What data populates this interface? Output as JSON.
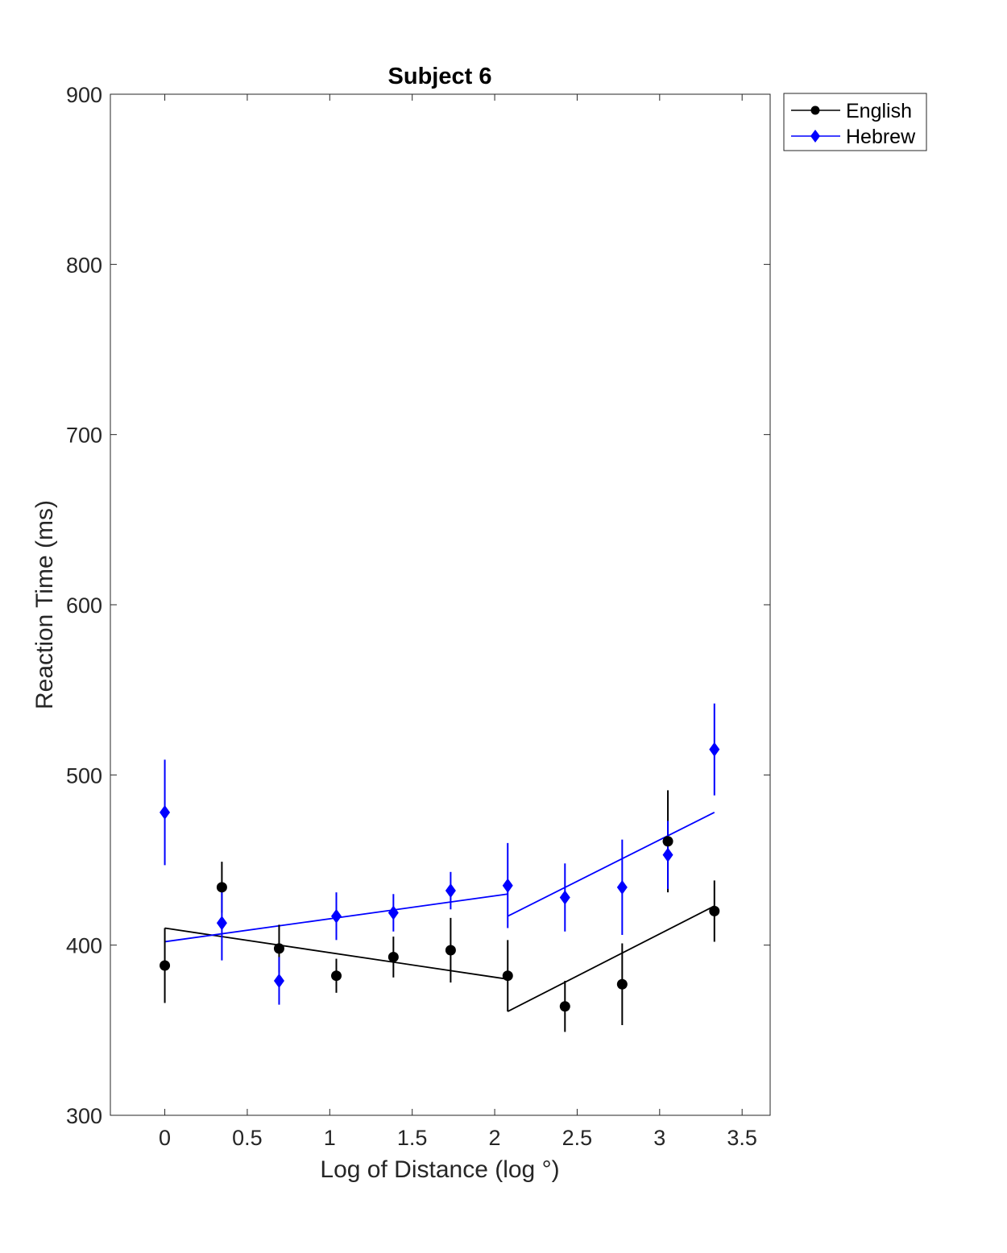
{
  "chart_data": {
    "type": "line",
    "title": "Subject 6",
    "xlabel": "Log of Distance (log °)",
    "ylabel": "Reaction Time (ms)",
    "xlim": [
      -0.33,
      3.67
    ],
    "ylim": [
      300,
      900
    ],
    "xticks": [
      0,
      0.5,
      1,
      1.5,
      2,
      2.5,
      3,
      3.5
    ],
    "xtick_labels": [
      "0",
      "0.5",
      "1",
      "1.5",
      "2",
      "2.5",
      "3",
      "3.5"
    ],
    "yticks": [
      300,
      400,
      500,
      600,
      700,
      800,
      900
    ],
    "ytick_labels": [
      "300",
      "400",
      "500",
      "600",
      "700",
      "800",
      "900"
    ],
    "grid": false,
    "legend_position": "outside top-right",
    "series": [
      {
        "name": "English",
        "color": "#000000",
        "marker": "circle",
        "points": [
          {
            "x": 0.0,
            "y": 388,
            "err": 22
          },
          {
            "x": 0.346,
            "y": 434,
            "err": 15
          },
          {
            "x": 0.693,
            "y": 398,
            "err": 14
          },
          {
            "x": 1.04,
            "y": 382,
            "err": 10
          },
          {
            "x": 1.386,
            "y": 393,
            "err": 12
          },
          {
            "x": 1.733,
            "y": 397,
            "err": 19
          },
          {
            "x": 2.079,
            "y": 382,
            "err": 21
          },
          {
            "x": 2.426,
            "y": 364,
            "err": 15
          },
          {
            "x": 2.773,
            "y": 377,
            "err": 24
          },
          {
            "x": 3.05,
            "y": 461,
            "err": 30
          },
          {
            "x": 3.332,
            "y": 420,
            "err": 18
          }
        ],
        "fit_segments": [
          [
            [
              0.0,
              410
            ],
            [
              2.079,
              380
            ]
          ],
          [
            [
              2.079,
              361
            ],
            [
              3.332,
              423
            ]
          ]
        ]
      },
      {
        "name": "Hebrew",
        "color": "#0000ff",
        "marker": "diamond",
        "points": [
          {
            "x": 0.0,
            "y": 478,
            "err": 31
          },
          {
            "x": 0.346,
            "y": 413,
            "err": 22
          },
          {
            "x": 0.693,
            "y": 379,
            "err": 14
          },
          {
            "x": 1.04,
            "y": 417,
            "err": 14
          },
          {
            "x": 1.386,
            "y": 419,
            "err": 11
          },
          {
            "x": 1.733,
            "y": 432,
            "err": 11
          },
          {
            "x": 2.079,
            "y": 435,
            "err": 25
          },
          {
            "x": 2.426,
            "y": 428,
            "err": 20
          },
          {
            "x": 2.773,
            "y": 434,
            "err": 28
          },
          {
            "x": 3.05,
            "y": 453,
            "err": 20
          },
          {
            "x": 3.332,
            "y": 515,
            "err": 27
          }
        ],
        "fit_segments": [
          [
            [
              0.0,
              402
            ],
            [
              2.079,
              430
            ]
          ],
          [
            [
              2.079,
              417
            ],
            [
              3.332,
              478
            ]
          ]
        ]
      }
    ]
  }
}
